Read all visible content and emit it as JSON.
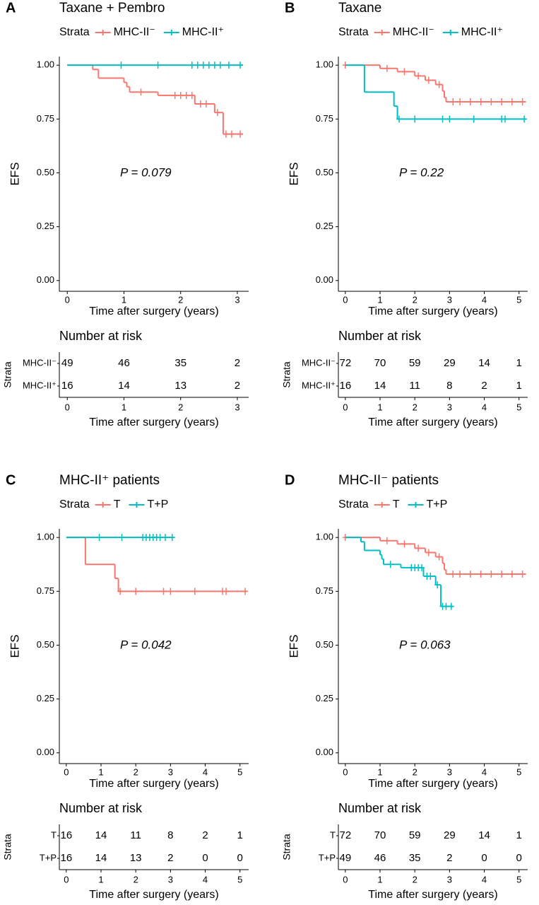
{
  "chart_data": [
    {
      "type": "step",
      "panel": "A",
      "title": "Taxane + Pembro",
      "legend_title": "Strata",
      "xlabel": "Time after surgery (years)",
      "ylabel": "EFS",
      "annotation": "P = 0.079",
      "xlim": [
        -0.14,
        3.2
      ],
      "xticks": [
        0,
        1,
        2,
        3
      ],
      "ylim": [
        -0.05,
        1.04
      ],
      "yticks": [
        {
          "value": 0,
          "label": "0.00"
        },
        {
          "value": 0.25,
          "label": "0.25"
        },
        {
          "value": 0.5,
          "label": "0.50"
        },
        {
          "value": 0.75,
          "label": "0.75"
        },
        {
          "value": 1,
          "label": "1.00"
        }
      ],
      "series": [
        {
          "name": "MHC-II⁻",
          "color": "#F8766D",
          "x": [
            0,
            0.45,
            0.55,
            1.0,
            1.05,
            1.1,
            1.6,
            2.25,
            2.6,
            2.75,
            3.1
          ],
          "values": [
            1,
            0.98,
            0.94,
            0.92,
            0.9,
            0.875,
            0.86,
            0.82,
            0.78,
            0.68,
            0.68
          ],
          "censor_x": [
            1.3,
            1.9,
            2.0,
            2.1,
            2.2,
            2.35,
            2.45,
            2.65,
            2.8,
            2.9,
            3.05
          ],
          "censor_values": [
            0.875,
            0.86,
            0.86,
            0.86,
            0.86,
            0.82,
            0.82,
            0.78,
            0.68,
            0.68,
            0.68
          ]
        },
        {
          "name": "MHC-II⁺",
          "color": "#00BFC4",
          "x": [
            0,
            3.1
          ],
          "values": [
            1,
            1
          ],
          "censor_x": [
            0.95,
            1.6,
            2.2,
            2.3,
            2.4,
            2.5,
            2.6,
            2.7,
            2.85,
            3.05
          ],
          "censor_values": [
            1,
            1,
            1,
            1,
            1,
            1,
            1,
            1,
            1,
            1
          ]
        }
      ],
      "risk_table": {
        "title": "Number at risk",
        "strata_label": "Strata",
        "rows": [
          {
            "name": "MHC-II⁻",
            "values": [
              49,
              46,
              35,
              2
            ]
          },
          {
            "name": "MHC-II⁺",
            "values": [
              16,
              14,
              13,
              2
            ]
          }
        ]
      }
    },
    {
      "type": "step",
      "panel": "B",
      "title": "Taxane",
      "legend_title": "Strata",
      "xlabel": "Time after surgery (years)",
      "ylabel": "EFS",
      "annotation": "P = 0.22",
      "xlim": [
        -0.2,
        5.25
      ],
      "xticks": [
        0,
        1,
        2,
        3,
        4,
        5
      ],
      "ylim": [
        -0.05,
        1.04
      ],
      "yticks": [
        {
          "value": 0,
          "label": "0.00"
        },
        {
          "value": 0.25,
          "label": "0.25"
        },
        {
          "value": 0.5,
          "label": "0.50"
        },
        {
          "value": 0.75,
          "label": "0.75"
        },
        {
          "value": 1,
          "label": "1.00"
        }
      ],
      "series": [
        {
          "name": "MHC-II⁻",
          "color": "#F8766D",
          "x": [
            0,
            1.0,
            1.5,
            2.0,
            2.3,
            2.6,
            2.8,
            2.85,
            2.9,
            5.2
          ],
          "values": [
            1,
            0.985,
            0.97,
            0.95,
            0.93,
            0.91,
            0.88,
            0.85,
            0.83,
            0.83
          ],
          "censor_x": [
            0,
            1.2,
            1.7,
            2.1,
            2.4,
            2.7,
            3.1,
            3.3,
            3.6,
            3.9,
            4.2,
            4.5,
            4.8,
            5.1
          ],
          "censor_values": [
            1,
            0.985,
            0.97,
            0.95,
            0.93,
            0.91,
            0.83,
            0.83,
            0.83,
            0.83,
            0.83,
            0.83,
            0.83,
            0.83
          ]
        },
        {
          "name": "MHC-II⁺",
          "color": "#00BFC4",
          "x": [
            0,
            0.55,
            1.4,
            1.5,
            5.2
          ],
          "values": [
            1,
            0.875,
            0.81,
            0.75,
            0.75
          ],
          "censor_x": [
            1.55,
            2.0,
            2.8,
            3.0,
            3.7,
            4.5,
            4.6,
            5.15
          ],
          "censor_values": [
            0.75,
            0.75,
            0.75,
            0.75,
            0.75,
            0.75,
            0.75,
            0.75
          ]
        }
      ],
      "risk_table": {
        "title": "Number at risk",
        "strata_label": "Strata",
        "rows": [
          {
            "name": "MHC-II⁻",
            "values": [
              72,
              70,
              59,
              29,
              14,
              1
            ]
          },
          {
            "name": "MHC-II⁺",
            "values": [
              16,
              14,
              11,
              8,
              2,
              1
            ]
          }
        ]
      }
    },
    {
      "type": "step",
      "panel": "C",
      "title": "MHC-II⁺ patients",
      "legend_title": "Strata",
      "xlabel": "Time after surgery (years)",
      "ylabel": "EFS",
      "annotation": "P = 0.042",
      "xlim": [
        -0.2,
        5.25
      ],
      "xticks": [
        0,
        1,
        2,
        3,
        4,
        5
      ],
      "ylim": [
        -0.05,
        1.04
      ],
      "yticks": [
        {
          "value": 0,
          "label": "0.00"
        },
        {
          "value": 0.25,
          "label": "0.25"
        },
        {
          "value": 0.5,
          "label": "0.50"
        },
        {
          "value": 0.75,
          "label": "0.75"
        },
        {
          "value": 1,
          "label": "1.00"
        }
      ],
      "series": [
        {
          "name": "T",
          "color": "#F8766D",
          "x": [
            0,
            0.55,
            1.4,
            1.5,
            5.2
          ],
          "values": [
            1,
            0.875,
            0.81,
            0.75,
            0.75
          ],
          "censor_x": [
            1.55,
            2.0,
            2.8,
            3.0,
            3.7,
            4.5,
            4.6,
            5.15
          ],
          "censor_values": [
            0.75,
            0.75,
            0.75,
            0.75,
            0.75,
            0.75,
            0.75,
            0.75
          ]
        },
        {
          "name": "T+P",
          "color": "#00BFC4",
          "x": [
            0,
            3.1
          ],
          "values": [
            1,
            1
          ],
          "censor_x": [
            0.95,
            1.6,
            2.2,
            2.3,
            2.4,
            2.5,
            2.6,
            2.7,
            2.85,
            3.05
          ],
          "censor_values": [
            1,
            1,
            1,
            1,
            1,
            1,
            1,
            1,
            1,
            1
          ]
        }
      ],
      "risk_table": {
        "title": "Number at risk",
        "strata_label": "Strata",
        "rows": [
          {
            "name": "T",
            "values": [
              16,
              14,
              11,
              8,
              2,
              1
            ]
          },
          {
            "name": "T+P",
            "values": [
              16,
              14,
              13,
              2,
              0,
              0
            ]
          }
        ]
      }
    },
    {
      "type": "step",
      "panel": "D",
      "title": "MHC-II⁻ patients",
      "legend_title": "Strata",
      "xlabel": "Time after surgery (years)",
      "ylabel": "EFS",
      "annotation": "P = 0.063",
      "xlim": [
        -0.2,
        5.25
      ],
      "xticks": [
        0,
        1,
        2,
        3,
        4,
        5
      ],
      "ylim": [
        -0.05,
        1.04
      ],
      "yticks": [
        {
          "value": 0,
          "label": "0.00"
        },
        {
          "value": 0.25,
          "label": "0.25"
        },
        {
          "value": 0.5,
          "label": "0.50"
        },
        {
          "value": 0.75,
          "label": "0.75"
        },
        {
          "value": 1,
          "label": "1.00"
        }
      ],
      "series": [
        {
          "name": "T",
          "color": "#F8766D",
          "x": [
            0,
            1.0,
            1.5,
            2.0,
            2.3,
            2.6,
            2.8,
            2.85,
            2.9,
            5.2
          ],
          "values": [
            1,
            0.985,
            0.97,
            0.95,
            0.93,
            0.91,
            0.88,
            0.85,
            0.83,
            0.83
          ],
          "censor_x": [
            0,
            1.2,
            1.7,
            2.1,
            2.4,
            2.7,
            3.1,
            3.3,
            3.6,
            3.9,
            4.2,
            4.5,
            4.8,
            5.1
          ],
          "censor_values": [
            1,
            0.985,
            0.97,
            0.95,
            0.93,
            0.91,
            0.83,
            0.83,
            0.83,
            0.83,
            0.83,
            0.83,
            0.83,
            0.83
          ]
        },
        {
          "name": "T+P",
          "color": "#00BFC4",
          "x": [
            0,
            0.45,
            0.55,
            1.0,
            1.05,
            1.1,
            1.6,
            2.25,
            2.6,
            2.75,
            3.1
          ],
          "values": [
            1,
            0.98,
            0.94,
            0.92,
            0.9,
            0.875,
            0.86,
            0.82,
            0.78,
            0.68,
            0.68
          ],
          "censor_x": [
            1.3,
            1.9,
            2.0,
            2.1,
            2.2,
            2.35,
            2.45,
            2.65,
            2.8,
            2.9,
            3.05
          ],
          "censor_values": [
            0.875,
            0.86,
            0.86,
            0.86,
            0.86,
            0.82,
            0.82,
            0.78,
            0.68,
            0.68,
            0.68
          ]
        }
      ],
      "risk_table": {
        "title": "Number at risk",
        "strata_label": "Strata",
        "rows": [
          {
            "name": "T",
            "values": [
              72,
              70,
              59,
              29,
              14,
              1
            ]
          },
          {
            "name": "T+P",
            "values": [
              49,
              46,
              35,
              2,
              0,
              0
            ]
          }
        ]
      }
    }
  ]
}
